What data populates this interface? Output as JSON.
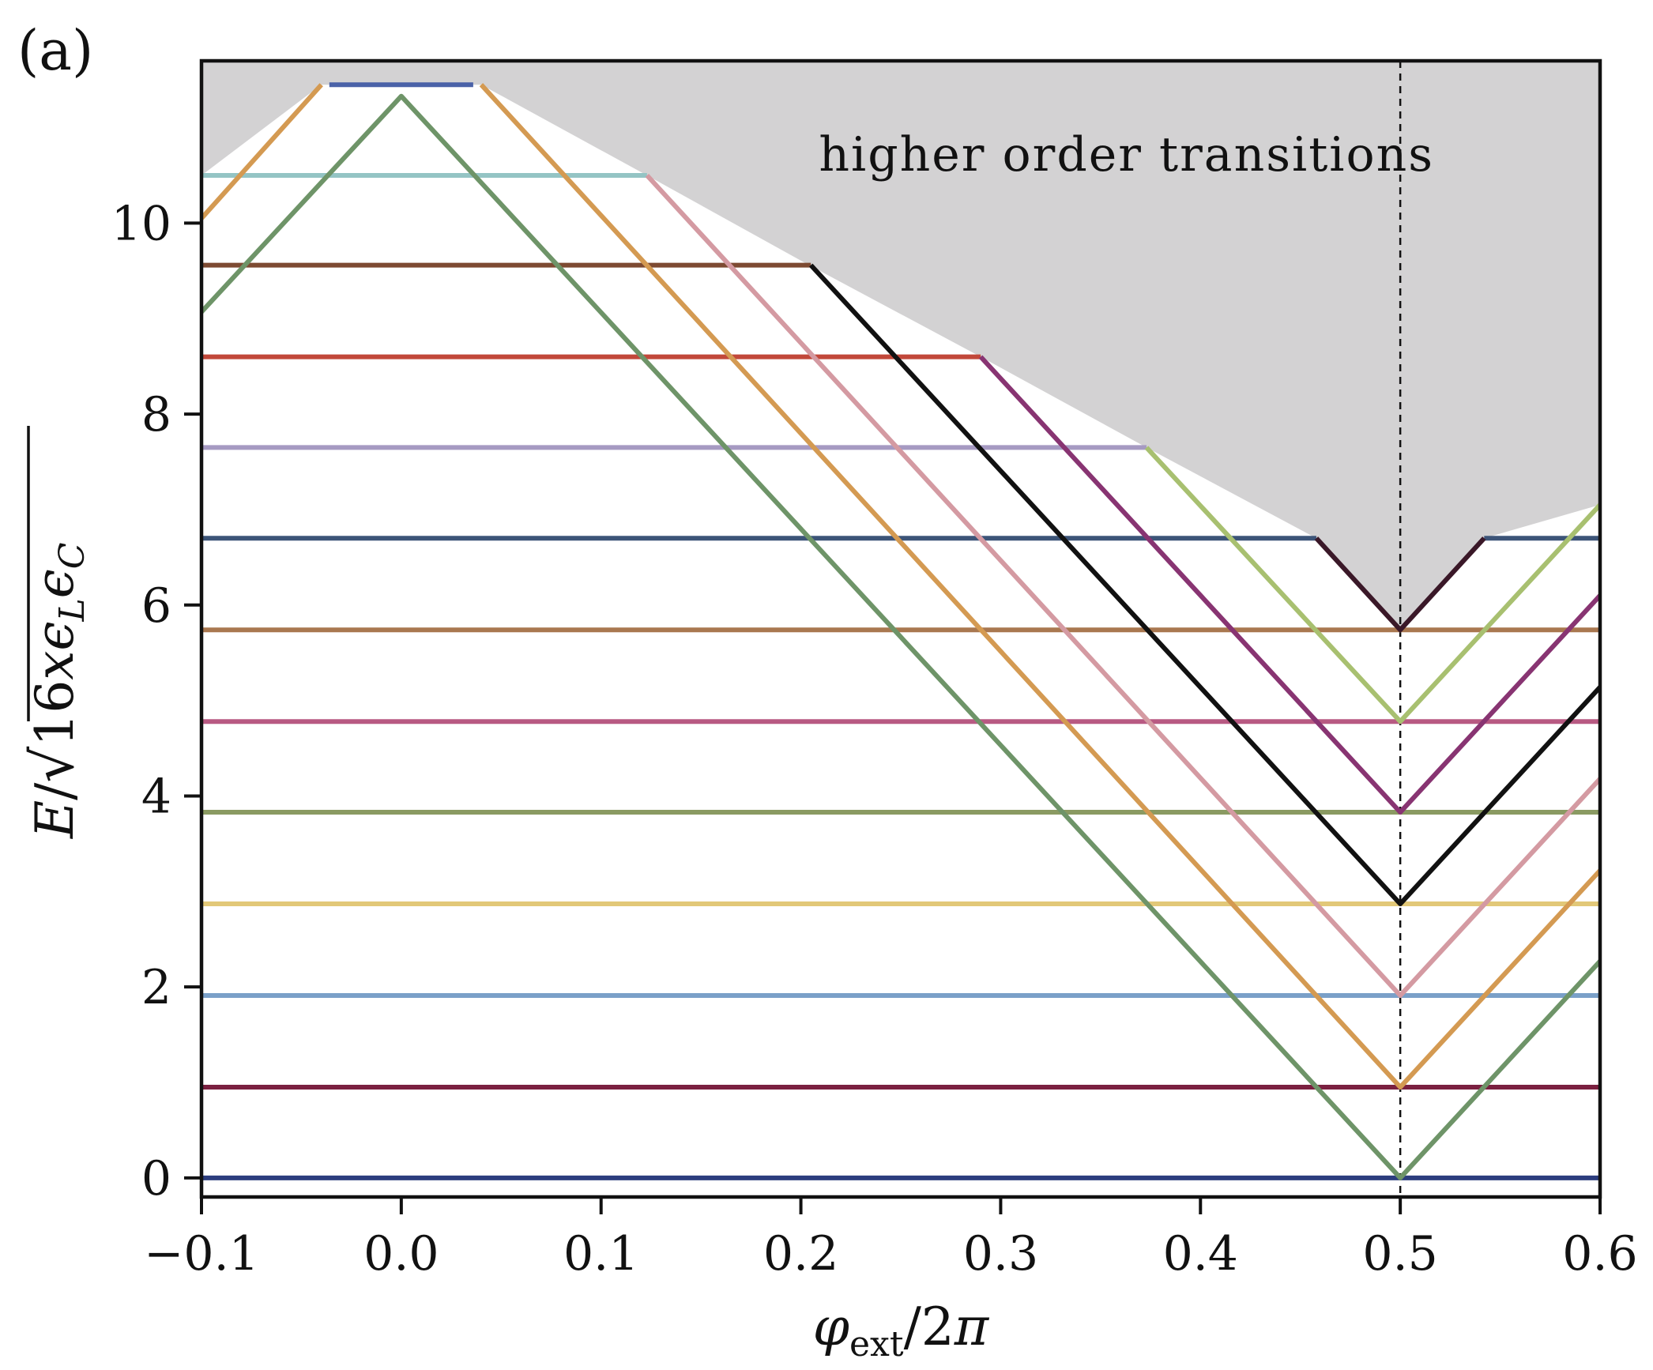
{
  "panel_label": "(a)",
  "chart_data": {
    "type": "line",
    "xlabel": "φ_ext / 2π",
    "ylabel": "E / √(16xϵ_L ϵ_C)",
    "xlim": [
      -0.1,
      0.6
    ],
    "ylim": [
      -0.2,
      11.7
    ],
    "xticks": [
      -0.1,
      0.0,
      0.1,
      0.2,
      0.3,
      0.4,
      0.5,
      0.6
    ],
    "xtick_labels": [
      "−0.1",
      "0.0",
      "0.1",
      "0.2",
      "0.3",
      "0.4",
      "0.5",
      "0.6"
    ],
    "yticks": [
      0,
      2,
      4,
      6,
      8,
      10
    ],
    "ytick_labels": [
      "0",
      "2",
      "4",
      "6",
      "8",
      "10"
    ],
    "grid": false,
    "annotation": {
      "text": "higher order transitions",
      "x": 0.363,
      "y": 10.55
    },
    "shaded_region": {
      "label": "higher order transitions",
      "color": "#d3d2d3",
      "x": [
        -0.1,
        -0.04,
        0.04,
        0.123,
        0.205,
        0.29,
        0.373,
        0.458,
        0.5,
        0.542,
        0.6
      ],
      "y": [
        10.5,
        11.45,
        11.45,
        10.5,
        9.55,
        8.6,
        7.65,
        6.7,
        5.73,
        6.7,
        7.05
      ]
    },
    "vline": {
      "x": 0.5,
      "style": "dashed",
      "color": "#111111"
    },
    "series": [
      {
        "color": "#2c3d7e",
        "x": [
          -0.1,
          0.6
        ],
        "y": [
          0.0,
          0.0
        ]
      },
      {
        "color": "#7a2040",
        "x": [
          -0.1,
          0.6
        ],
        "y": [
          0.95,
          0.95
        ]
      },
      {
        "color": "#7aa0c8",
        "x": [
          -0.1,
          0.6
        ],
        "y": [
          1.91,
          1.91
        ]
      },
      {
        "color": "#e2c878",
        "x": [
          -0.1,
          0.6
        ],
        "y": [
          2.87,
          2.87
        ]
      },
      {
        "color": "#8a9a62",
        "x": [
          -0.1,
          0.6
        ],
        "y": [
          3.83,
          3.83
        ]
      },
      {
        "color": "#b85a82",
        "x": [
          -0.1,
          0.6
        ],
        "y": [
          4.78,
          4.78
        ]
      },
      {
        "color": "#a97850",
        "x": [
          -0.1,
          0.6
        ],
        "y": [
          5.74,
          5.74
        ]
      },
      {
        "color": "#3c5478",
        "x": [
          -0.1,
          0.458
        ],
        "y": [
          6.7,
          6.7
        ]
      },
      {
        "color": "#3c5478",
        "x": [
          0.542,
          0.6
        ],
        "y": [
          6.7,
          6.7
        ]
      },
      {
        "color": "#a69ac2",
        "x": [
          -0.1,
          0.373
        ],
        "y": [
          7.65,
          7.65
        ]
      },
      {
        "color": "#c2483a",
        "x": [
          -0.1,
          0.29
        ],
        "y": [
          8.6,
          8.6
        ]
      },
      {
        "color": "#7d4a32",
        "x": [
          -0.1,
          0.205
        ],
        "y": [
          9.56,
          9.56
        ]
      },
      {
        "color": "#94c4c4",
        "x": [
          -0.1,
          0.123
        ],
        "y": [
          10.5,
          10.5
        ]
      },
      {
        "color": "#4a62a8",
        "x": [
          -0.036,
          0.036
        ],
        "y": [
          11.45,
          11.45
        ]
      },
      {
        "color": "#6e9468",
        "x": [
          -0.1,
          0.0,
          0.5,
          0.6
        ],
        "y": [
          9.07,
          11.33,
          0.0,
          2.27
        ]
      },
      {
        "color": "#d49a52",
        "x": [
          -0.1,
          -0.04
        ],
        "y": [
          10.05,
          11.45
        ]
      },
      {
        "color": "#d49a52",
        "x": [
          0.04,
          0.5,
          0.6
        ],
        "y": [
          11.45,
          0.95,
          3.22
        ]
      },
      {
        "color": "#d49aa2",
        "x": [
          0.123,
          0.5,
          0.6
        ],
        "y": [
          10.5,
          1.91,
          4.18
        ]
      },
      {
        "color": "#111111",
        "x": [
          0.205,
          0.5,
          0.6
        ],
        "y": [
          9.56,
          2.87,
          5.14
        ]
      },
      {
        "color": "#883472",
        "x": [
          0.29,
          0.5,
          0.6
        ],
        "y": [
          8.6,
          3.83,
          6.1
        ]
      },
      {
        "color": "#a8c070",
        "x": [
          0.373,
          0.5,
          0.6
        ],
        "y": [
          7.65,
          4.78,
          7.05
        ]
      },
      {
        "color": "#3a1828",
        "x": [
          0.458,
          0.5,
          0.542
        ],
        "y": [
          6.7,
          5.74,
          6.7
        ]
      }
    ]
  }
}
